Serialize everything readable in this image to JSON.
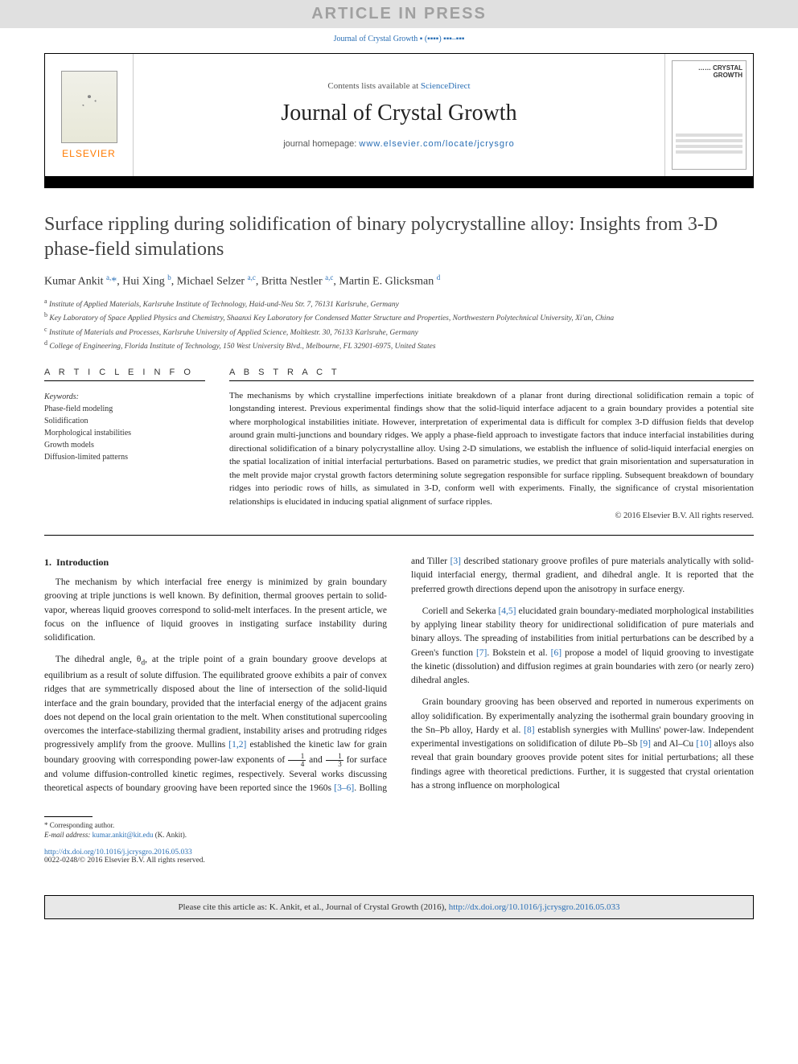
{
  "banner": {
    "text": "ARTICLE IN PRESS"
  },
  "journal_ref": "Journal of Crystal Growth ▪ (▪▪▪▪) ▪▪▪–▪▪▪",
  "header": {
    "elsevier": "ELSEVIER",
    "contents_prefix": "Contents lists available at ",
    "contents_link": "ScienceDirect",
    "journal_name": "Journal of Crystal Growth",
    "homepage_prefix": "journal homepage: ",
    "homepage_url": "www.elsevier.com/locate/jcrysgro",
    "cover_line1": "…… CRYSTAL",
    "cover_line2": "GROWTH"
  },
  "article": {
    "title": "Surface rippling during solidification of binary polycrystalline alloy: Insights from 3-D phase-field simulations",
    "authors_html": "Kumar Ankit <sup>a,</sup>*, Hui Xing <sup>b</sup>, Michael Selzer <sup>a,c</sup>, Britta Nestler <sup>a,c</sup>, Martin E. Glicksman <sup>d</sup>",
    "affiliations": [
      {
        "sup": "a",
        "text": "Institute of Applied Materials, Karlsruhe Institute of Technology, Haid-und-Neu Str. 7, 76131 Karlsruhe, Germany"
      },
      {
        "sup": "b",
        "text": "Key Laboratory of Space Applied Physics and Chemistry, Shaanxi Key Laboratory for Condensed Matter Structure and Properties, Northwestern Polytechnical University, Xi'an, China"
      },
      {
        "sup": "c",
        "text": "Institute of Materials and Processes, Karlsruhe University of Applied Science, Moltkestr. 30, 76133 Karlsruhe, Germany"
      },
      {
        "sup": "d",
        "text": "College of Engineering, Florida Institute of Technology, 150 West University Blvd., Melbourne, FL 32901-6975, United States"
      }
    ]
  },
  "info": {
    "heading_info": "A R T I C L E   I N F O",
    "heading_abstract": "A B S T R A C T",
    "keywords_label": "Keywords:",
    "keywords": [
      "Phase-field modeling",
      "Solidification",
      "Morphological instabilities",
      "Growth models",
      "Diffusion-limited patterns"
    ]
  },
  "abstract": {
    "text": "The mechanisms by which crystalline imperfections initiate breakdown of a planar front during directional solidification remain a topic of longstanding interest. Previous experimental findings show that the solid-liquid interface adjacent to a grain boundary provides a potential site where morphological instabilities initiate. However, interpretation of experimental data is difficult for complex 3-D diffusion fields that develop around grain multi-junctions and boundary ridges. We apply a phase-field approach to investigate factors that induce interfacial instabilities during directional solidification of a binary polycrystalline alloy. Using 2-D simulations, we establish the influence of solid-liquid interfacial energies on the spatial localization of initial interfacial perturbations. Based on parametric studies, we predict that grain misorientation and supersaturation in the melt provide major crystal growth factors determining solute segregation responsible for surface rippling. Subsequent breakdown of boundary ridges into periodic rows of hills, as simulated in 3-D, conform well with experiments. Finally, the significance of crystal misorientation relationships is elucidated in inducing spatial alignment of surface ripples.",
    "copyright": "© 2016 Elsevier B.V. All rights reserved."
  },
  "body": {
    "section_no": "1.",
    "section_title": "Introduction",
    "p1": "The mechanism by which interfacial free energy is minimized by grain boundary grooving at triple junctions is well known. By definition, thermal grooves pertain to solid-vapor, whereas liquid grooves correspond to solid-melt interfaces. In the present article, we focus on the influence of liquid grooves in instigating surface instability during solidification.",
    "p2a": "The dihedral angle, θ",
    "p2a_sub": "d",
    "p2b": ", at the triple point of a grain boundary groove develops at equilibrium as a result of solute diffusion. The equilibrated groove exhibits a pair of convex ridges that are symmetrically disposed about the line of intersection of the solid-liquid interface and the grain boundary, provided that the interfacial energy of the adjacent grains does not depend on the local grain orientation to the melt. When constitutional supercooling overcomes the interface-stabilizing thermal gradient, instability arises and protruding ridges progressively amplify from the groove. Mullins ",
    "p2_cite1": "[1,2]",
    "p2c": " established the kinetic law for grain boundary grooving with corresponding power-law exponents of ",
    "p2d": " and ",
    "p2e": " for surface and volume diffusion-controlled kinetic regimes, ",
    "p3a": "respectively. Several works discussing theoretical aspects of boundary grooving have been reported since the 1960s ",
    "p3_cite1": "[3–6]",
    "p3b": ". Bolling and Tiller ",
    "p3_cite2": "[3]",
    "p3c": " described stationary groove profiles of pure materials analytically with solid-liquid interfacial energy, thermal gradient, and dihedral angle. It is reported that the preferred growth directions depend upon the anisotropy in surface energy.",
    "p4a": "Coriell and Sekerka ",
    "p4_cite1": "[4,5]",
    "p4b": " elucidated grain boundary-mediated morphological instabilities by applying linear stability theory for unidirectional solidification of pure materials and binary alloys. The spreading of instabilities from initial perturbations can be described by a Green's function ",
    "p4_cite2": "[7]",
    "p4c": ". Bokstein et al. ",
    "p4_cite3": "[6]",
    "p4d": " propose a model of liquid grooving to investigate the kinetic (dissolution) and diffusion regimes at grain boundaries with zero (or nearly zero) dihedral angles.",
    "p5a": "Grain boundary grooving has been observed and reported in numerous experiments on alloy solidification. By experimentally analyzing the isothermal grain boundary grooving in the Sn–Pb alloy, Hardy et al. ",
    "p5_cite1": "[8]",
    "p5b": " establish synergies with Mullins' power-law. Independent experimental investigations on solidification of dilute Pb–Sb ",
    "p5_cite2": "[9]",
    "p5c": " and Al–Cu ",
    "p5_cite3": "[10]",
    "p5d": " alloys also reveal that grain boundary grooves provide potent sites for initial perturbations; all these findings agree with theoretical predictions. Further, it is suggested that crystal orientation has a strong influence on morphological"
  },
  "footnote": {
    "corr": "* Corresponding author.",
    "email_label": "E-mail address: ",
    "email": "kumar.ankit@kit.edu",
    "email_who": " (K. Ankit).",
    "doi": "http://dx.doi.org/10.1016/j.jcrysgro.2016.05.033",
    "issn_line": "0022-0248/© 2016 Elsevier B.V. All rights reserved."
  },
  "citebox": {
    "prefix": "Please cite this article as: K. Ankit, et al., Journal of Crystal Growth (2016), ",
    "link": "http://dx.doi.org/10.1016/j.jcrysgro.2016.05.033"
  },
  "colors": {
    "link": "#2a6fb5",
    "elsevier_orange": "#ff7a00",
    "banner_bg": "#e0e0e0",
    "banner_fg": "#a0a0a0",
    "citebox_bg": "#e8e8e8"
  }
}
